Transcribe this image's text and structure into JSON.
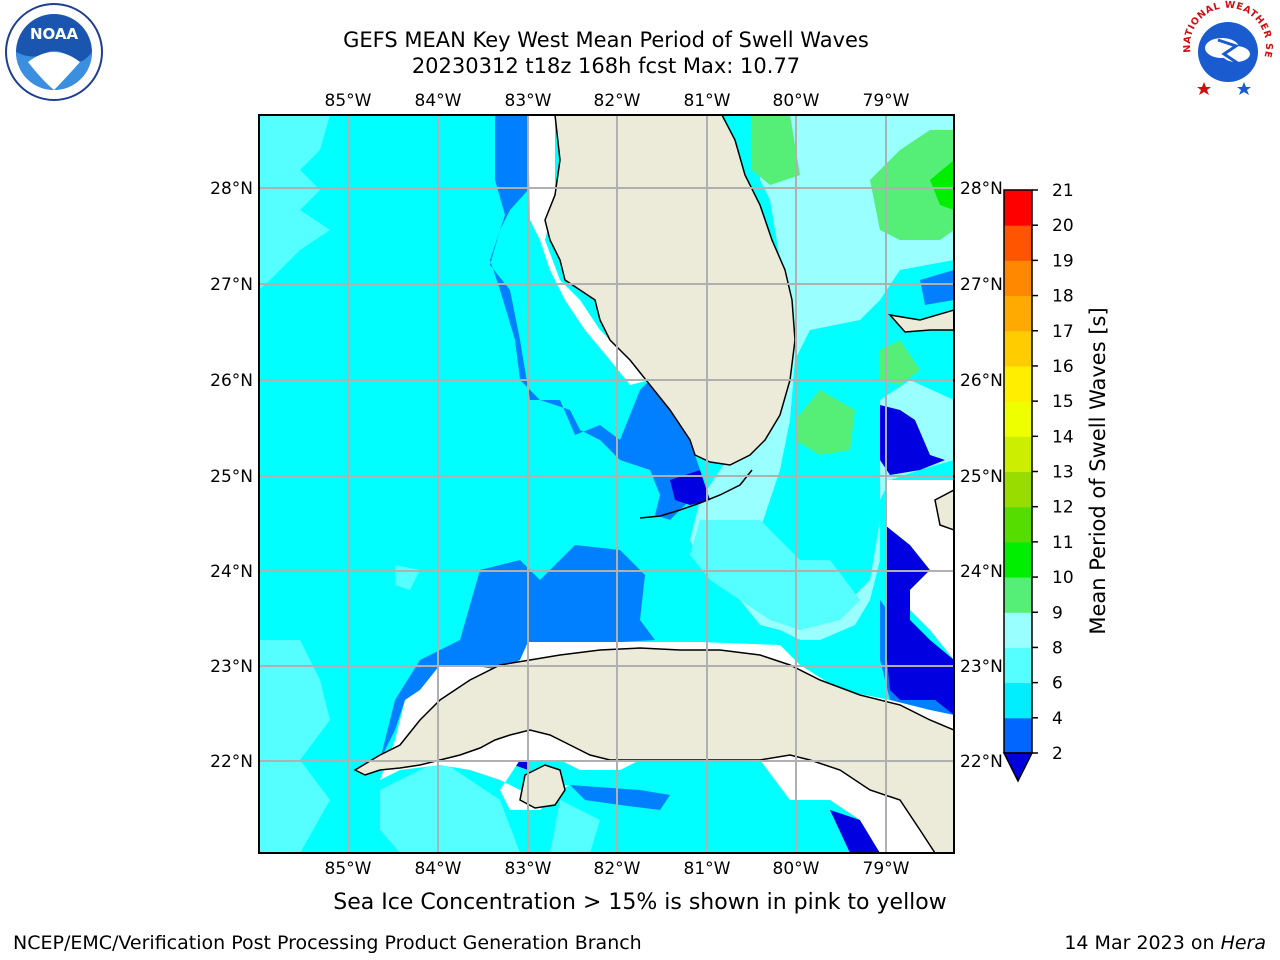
{
  "title_line1": "GEFS MEAN Key West Mean Period of Swell Waves",
  "title_line2": "20230312 t18z 168h fcst   Max: 10.77",
  "lon_labels": [
    "85°W",
    "84°W",
    "83°W",
    "82°W",
    "81°W",
    "80°W",
    "79°W"
  ],
  "lat_labels": [
    "28°N",
    "27°N",
    "26°N",
    "25°N",
    "24°N",
    "23°N",
    "22°N"
  ],
  "colorbar": {
    "label": "Mean Period of Swell Waves [s]",
    "ticks": [
      "2",
      "4",
      "6",
      "8",
      "9",
      "10",
      "11",
      "12",
      "13",
      "14",
      "15",
      "16",
      "17",
      "18",
      "19",
      "20",
      "21"
    ],
    "colors": [
      "#0066ff",
      "#00eeff",
      "#55ffff",
      "#99ffff",
      "#55ee77",
      "#00ee00",
      "#55dd00",
      "#99dd00",
      "#ccee00",
      "#eeff00",
      "#ffee00",
      "#ffcc00",
      "#ffaa00",
      "#ff8800",
      "#ff5500",
      "#ff2200",
      "#ff0000"
    ],
    "extend_low_color": "#0000dd"
  },
  "colors": {
    "land": "#ecead9",
    "ocean_base": "#00ffff",
    "ocean_deep": "#0080ff",
    "ocean_darkest": "#0000e0",
    "ocean_light": "#55ffff",
    "ocean_pale": "#99ffff",
    "green_light": "#55ee77",
    "grid": "#b0b0b0"
  },
  "footer": {
    "ice_note": "Sea Ice Concentration > 15% is shown in pink to yellow",
    "credit": "NCEP/EMC/Verification Post Processing Product Generation Branch",
    "date": "14 Mar 2023 on",
    "machine": "Hera"
  },
  "logos": {
    "noaa": "NOAA",
    "nws": "NATIONAL WEATHER SERVICE"
  }
}
